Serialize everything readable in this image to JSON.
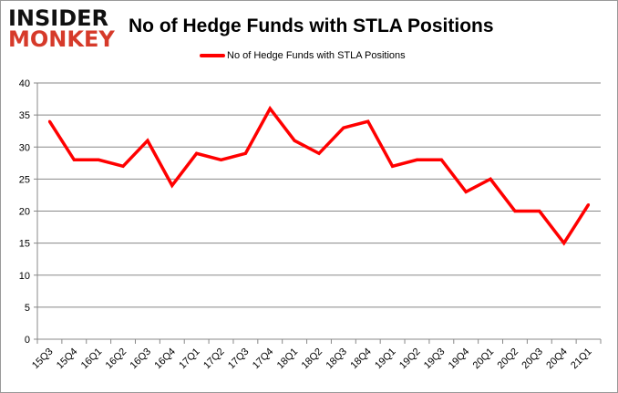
{
  "logo": {
    "line1": "INSIDER",
    "line2": "MONKEY"
  },
  "chart_data": {
    "type": "line",
    "title": "No of Hedge Funds with STLA Positions",
    "xlabel": "",
    "ylabel": "",
    "categories": [
      "15Q3",
      "15Q4",
      "16Q1",
      "16Q2",
      "16Q3",
      "16Q4",
      "17Q1",
      "17Q2",
      "17Q3",
      "17Q4",
      "18Q1",
      "18Q2",
      "18Q3",
      "18Q4",
      "19Q1",
      "19Q2",
      "19Q3",
      "19Q4",
      "20Q1",
      "20Q2",
      "20Q3",
      "20Q4",
      "21Q1"
    ],
    "series": [
      {
        "name": "No of Hedge Funds with STLA Positions",
        "color": "#ff0000",
        "values": [
          34,
          28,
          28,
          27,
          31,
          24,
          29,
          28,
          29,
          36,
          31,
          29,
          33,
          34,
          27,
          28,
          28,
          23,
          25,
          20,
          20,
          15,
          21
        ]
      }
    ],
    "ylim": [
      0,
      40
    ],
    "yticks": [
      "0",
      "5",
      "10",
      "15",
      "20",
      "25",
      "30",
      "35",
      "40"
    ],
    "grid": true,
    "legend_position": "top"
  }
}
